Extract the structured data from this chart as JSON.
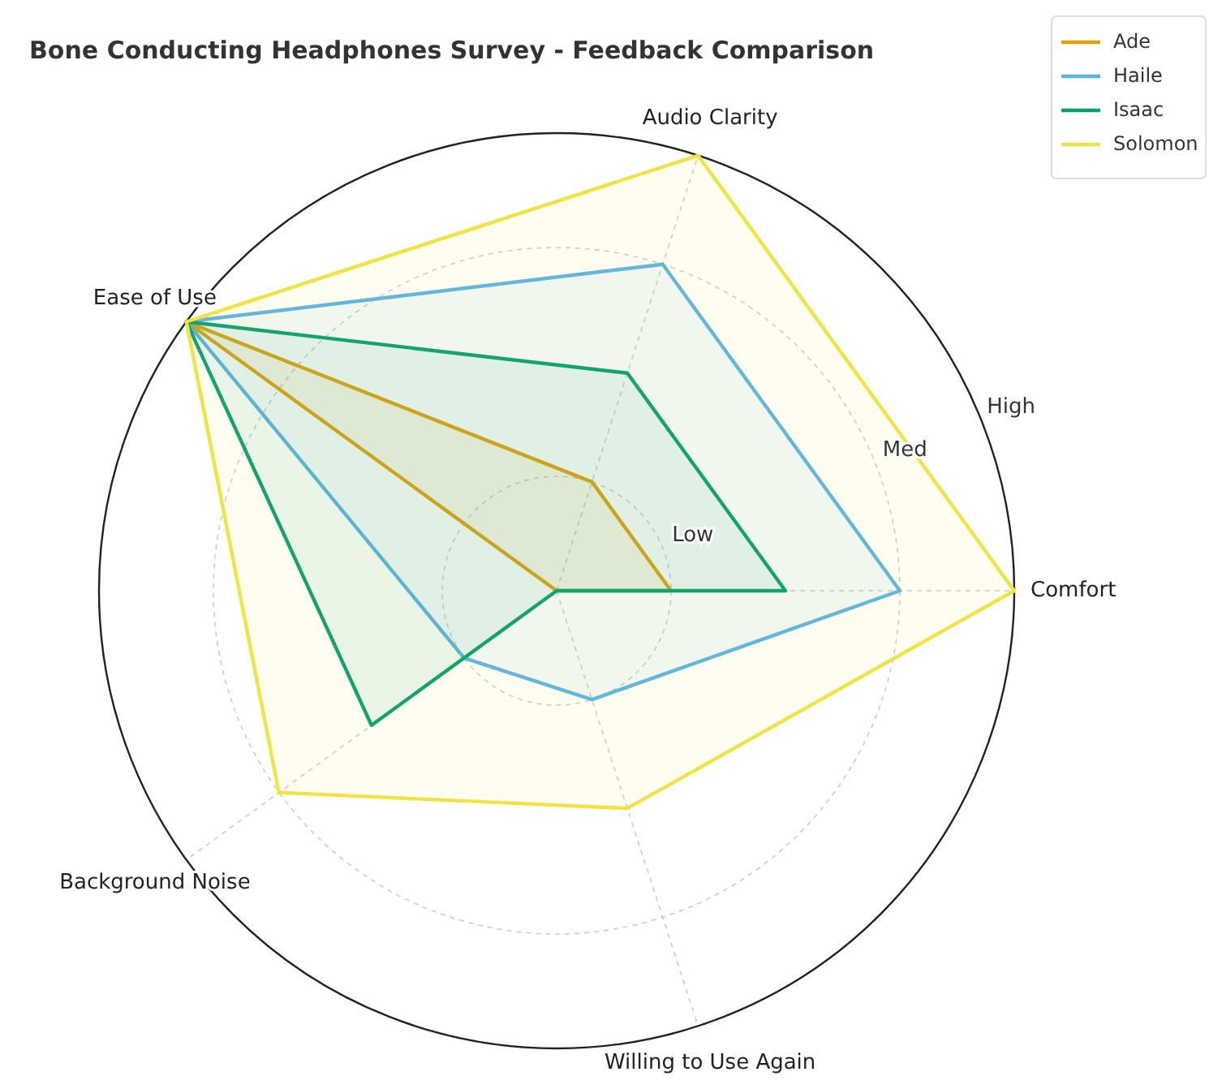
{
  "chart_data": {
    "type": "radar",
    "title": "Bone Conducting Headphones Survey - Feedback Comparison",
    "categories": [
      "Audio Clarity",
      "Comfort",
      "Willing to Use Again",
      "Background Noise",
      "Ease of Use"
    ],
    "series": [
      {
        "name": "Ade",
        "color": "#e69f00",
        "values": [
          1,
          1,
          0,
          0,
          4
        ]
      },
      {
        "name": "Haile",
        "color": "#56b4e9",
        "values": [
          3,
          3,
          1,
          1,
          4
        ]
      },
      {
        "name": "Isaac",
        "color": "#009e73",
        "values": [
          2,
          2,
          0,
          2,
          4
        ]
      },
      {
        "name": "Solomon",
        "color": "#f0e442",
        "values": [
          4,
          4,
          2,
          3,
          4
        ]
      }
    ],
    "ylim": [
      0,
      4
    ],
    "yticks": [
      {
        "value": 1,
        "label": "Low"
      },
      {
        "value": 3,
        "label": "Med"
      },
      {
        "value": 4,
        "label": "High"
      }
    ],
    "grid": true,
    "legend": "top right"
  }
}
